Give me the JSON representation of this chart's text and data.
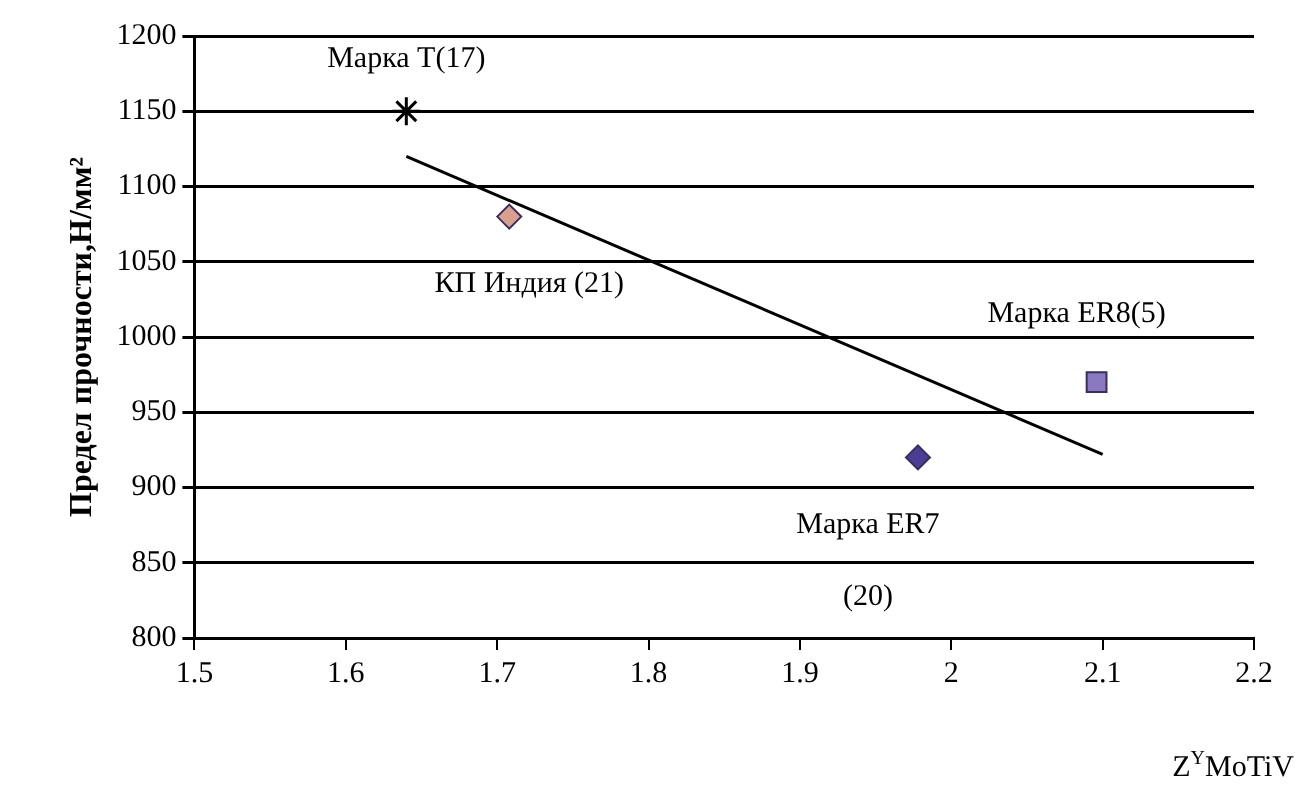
{
  "chart_data": {
    "type": "scatter",
    "xlabel": "Z$^{Y}$MoTiV",
    "ylabel": "Предел прочности,Н/мм²",
    "xlim": [
      1.5,
      2.2
    ],
    "xticks": [
      1.5,
      1.6,
      1.7,
      1.8,
      1.9,
      2,
      2.1,
      2.2
    ],
    "ylim": [
      800,
      1200
    ],
    "yticks": [
      800,
      850,
      900,
      950,
      1000,
      1050,
      1100,
      1150,
      1200
    ],
    "grid": "y",
    "legend": false,
    "series": [
      {
        "name": "Марка T(17)",
        "color": "#000000",
        "marker": "cross",
        "x": [
          1.64
        ],
        "values": [
          1150
        ]
      },
      {
        "name": "КП Индия (21)",
        "color": "#d9a08f",
        "marker": "diamond",
        "x": [
          1.708
        ],
        "values": [
          1080
        ]
      },
      {
        "name": "Марка ER7 (20)",
        "color": "#4b3c96",
        "marker": "diamond",
        "x": [
          1.978
        ],
        "values": [
          920
        ]
      },
      {
        "name": "Марка ER8(5)",
        "color": "#8a78c0",
        "marker": "square",
        "x": [
          2.096
        ],
        "values": [
          970
        ]
      },
      {
        "type": "line",
        "color": "#000000",
        "marker": "none",
        "x": [
          1.64,
          2.1
        ],
        "values": [
          1120,
          922
        ]
      }
    ]
  }
}
